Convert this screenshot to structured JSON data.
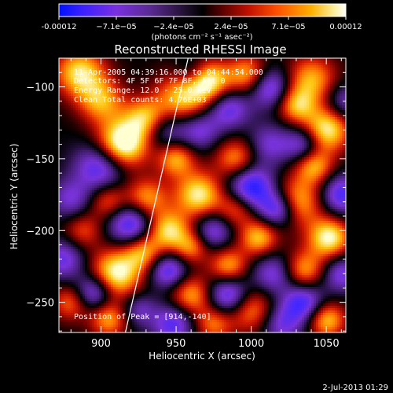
{
  "colorbar": {
    "tick_labels": [
      "-0.00012",
      "−7.1e−05",
      "−2.4e−05",
      "2.4e−05",
      "7.1e−05",
      "0.00012"
    ],
    "unit_label": "(photons cm⁻² s⁻¹ asec⁻²)",
    "range": [
      -0.00012,
      0.00012
    ]
  },
  "chart_data": {
    "type": "heatmap",
    "title": "Reconstructed RHESSI Image",
    "xlabel": "Heliocentric X (arcsec)",
    "ylabel": "Heliocentric Y (arcsec)",
    "xlim": [
      872,
      1063
    ],
    "ylim": [
      -271,
      -80
    ],
    "x_ticks": [
      900,
      950,
      1000,
      1050
    ],
    "y_ticks": [
      -100,
      -150,
      -200,
      -250
    ],
    "x_tick_labels": [
      "900",
      "950",
      "1000",
      "1050"
    ],
    "y_tick_labels": [
      "−100",
      "−150",
      "−200",
      "−250"
    ],
    "limb_line": [
      [
        916,
        -272
      ],
      [
        958,
        -80
      ]
    ],
    "blobs": [
      {
        "x": 886,
        "y": -90,
        "s": 12,
        "a": 0.9
      },
      {
        "x": 900,
        "y": -110,
        "s": 11,
        "a": 0.7
      },
      {
        "x": 914,
        "y": -140,
        "s": 12,
        "a": 1.25
      },
      {
        "x": 930,
        "y": -122,
        "s": 10,
        "a": 0.8
      },
      {
        "x": 955,
        "y": -108,
        "s": 13,
        "a": 0.85
      },
      {
        "x": 972,
        "y": -96,
        "s": 10,
        "a": 0.9
      },
      {
        "x": 998,
        "y": -92,
        "s": 10,
        "a": 0.8
      },
      {
        "x": 1040,
        "y": -95,
        "s": 12,
        "a": 0.75
      },
      {
        "x": 1050,
        "y": -130,
        "s": 11,
        "a": 1.0
      },
      {
        "x": 1042,
        "y": -155,
        "s": 9,
        "a": 0.75
      },
      {
        "x": 1030,
        "y": -113,
        "s": 9,
        "a": 0.7
      },
      {
        "x": 950,
        "y": -150,
        "s": 9,
        "a": 0.75
      },
      {
        "x": 965,
        "y": -175,
        "s": 11,
        "a": 0.95
      },
      {
        "x": 990,
        "y": -150,
        "s": 10,
        "a": 0.7
      },
      {
        "x": 990,
        "y": -185,
        "s": 9,
        "a": 0.6
      },
      {
        "x": 1005,
        "y": -205,
        "s": 9,
        "a": 0.8
      },
      {
        "x": 1030,
        "y": -180,
        "s": 12,
        "a": 0.85
      },
      {
        "x": 1052,
        "y": -205,
        "s": 10,
        "a": 1.0
      },
      {
        "x": 1035,
        "y": -228,
        "s": 10,
        "a": 0.75
      },
      {
        "x": 930,
        "y": -178,
        "s": 10,
        "a": 0.75
      },
      {
        "x": 905,
        "y": -180,
        "s": 9,
        "a": 0.6
      },
      {
        "x": 945,
        "y": -200,
        "s": 10,
        "a": 0.9
      },
      {
        "x": 960,
        "y": -212,
        "s": 8,
        "a": 0.6
      },
      {
        "x": 928,
        "y": -215,
        "s": 9,
        "a": 0.7
      },
      {
        "x": 910,
        "y": -230,
        "s": 12,
        "a": 1.05
      },
      {
        "x": 888,
        "y": -200,
        "s": 9,
        "a": 0.5
      },
      {
        "x": 880,
        "y": -250,
        "s": 9,
        "a": 0.6
      },
      {
        "x": 905,
        "y": -262,
        "s": 9,
        "a": 0.7
      },
      {
        "x": 960,
        "y": -245,
        "s": 10,
        "a": 0.75
      },
      {
        "x": 985,
        "y": -225,
        "s": 9,
        "a": 0.75
      },
      {
        "x": 1000,
        "y": -255,
        "s": 11,
        "a": 0.7
      },
      {
        "x": 1050,
        "y": -262,
        "s": 9,
        "a": 0.85
      },
      {
        "x": 975,
        "y": -265,
        "s": 9,
        "a": 0.6
      },
      {
        "x": 900,
        "y": -155,
        "s": 12,
        "a": -0.8
      },
      {
        "x": 920,
        "y": -195,
        "s": 11,
        "a": -0.85
      },
      {
        "x": 875,
        "y": -220,
        "s": 10,
        "a": -0.6
      },
      {
        "x": 895,
        "y": -243,
        "s": 9,
        "a": -0.8
      },
      {
        "x": 880,
        "y": -178,
        "s": 10,
        "a": -0.5
      },
      {
        "x": 942,
        "y": -130,
        "s": 10,
        "a": -0.55
      },
      {
        "x": 965,
        "y": -130,
        "s": 10,
        "a": -0.6
      },
      {
        "x": 985,
        "y": -115,
        "s": 10,
        "a": -0.65
      },
      {
        "x": 1012,
        "y": -100,
        "s": 10,
        "a": -0.8
      },
      {
        "x": 1012,
        "y": -140,
        "s": 10,
        "a": -0.5
      },
      {
        "x": 1000,
        "y": -170,
        "s": 11,
        "a": -0.95
      },
      {
        "x": 1018,
        "y": -185,
        "s": 9,
        "a": -0.9
      },
      {
        "x": 1035,
        "y": -140,
        "s": 9,
        "a": -0.65
      },
      {
        "x": 1060,
        "y": -175,
        "s": 10,
        "a": -0.75
      },
      {
        "x": 1062,
        "y": -110,
        "s": 9,
        "a": -0.5
      },
      {
        "x": 1035,
        "y": -250,
        "s": 10,
        "a": -0.8
      },
      {
        "x": 1060,
        "y": -230,
        "s": 9,
        "a": -0.6
      },
      {
        "x": 975,
        "y": -200,
        "s": 9,
        "a": -0.6
      },
      {
        "x": 985,
        "y": -245,
        "s": 10,
        "a": -0.85
      },
      {
        "x": 1015,
        "y": -230,
        "s": 10,
        "a": -0.6
      },
      {
        "x": 945,
        "y": -228,
        "s": 9,
        "a": -0.75
      },
      {
        "x": 948,
        "y": -265,
        "s": 10,
        "a": -0.7
      },
      {
        "x": 1020,
        "y": -265,
        "s": 10,
        "a": -0.55
      },
      {
        "x": 925,
        "y": -255,
        "s": 8,
        "a": -0.45
      },
      {
        "x": 960,
        "y": -90,
        "s": 8,
        "a": -0.4
      }
    ]
  },
  "annotations": {
    "line1": "11-Apr-2005 04:39:16.000 to 04:44:54.000",
    "line2": "Detectors: 4F 5F 6F 7F 8F, Att 0",
    "line3": "Energy Range: 12.0 - 25.0 keV",
    "line4": "Clean    Total counts: 4.76E+03",
    "peak": "Position of Peak = [914,-140]"
  },
  "footer": {
    "timestamp": "2-Jul-2013 01:29"
  }
}
